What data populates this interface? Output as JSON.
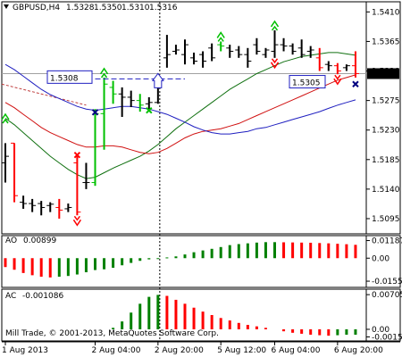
{
  "colors": {
    "background": "#ffffff",
    "frame": "#000000",
    "bull_bar": "#00c000",
    "bear_bar": "#ff0000",
    "neutral_bar": "#000000",
    "ma_blue": "#1f1fc0",
    "ma_red": "#d01010",
    "ma_green": "#107010",
    "ao_up": "#008000",
    "ao_down": "#ff0000",
    "arrow_up": "#00c000",
    "arrow_down": "#ff0000",
    "signal_cross": "#000080",
    "price_tag_bg": "#000000",
    "price_tag_fg": "#ffffff",
    "hline": "#1f1fc0",
    "dotted_line": "#000000",
    "pink_line": "#c04040"
  },
  "chart_data": [
    {
      "type": "bar",
      "title": "GBPUSD,H4",
      "ohlc_readout": [
        "1.5328",
        "1.5350",
        "1.5310",
        "1.5316"
      ],
      "ylim": [
        1.508,
        1.542
      ],
      "y_ticks": [
        "1.5410",
        "1.5365",
        "1.5320",
        "1.5275",
        "1.5230",
        "1.5185",
        "1.5140",
        "1.5095"
      ],
      "y_tick_values": [
        1.541,
        1.5365,
        1.532,
        1.5275,
        1.523,
        1.5185,
        1.514,
        1.5095
      ],
      "current_price_label": "1.5316",
      "current_price": 1.5316,
      "annotations": [
        {
          "text": "1.5308",
          "value": 1.5308
        },
        {
          "text": "1.5305",
          "value": 1.5305
        }
      ],
      "bars": [
        {
          "i": 0,
          "o": 1.518,
          "h": 1.521,
          "l": 1.515,
          "c": 1.519,
          "col": "neutral"
        },
        {
          "i": 1,
          "o": 1.521,
          "h": 1.521,
          "l": 1.512,
          "c": 1.513,
          "col": "bear"
        },
        {
          "i": 2,
          "o": 1.512,
          "h": 1.513,
          "l": 1.511,
          "c": 1.5118,
          "col": "neutral"
        },
        {
          "i": 3,
          "o": 1.5118,
          "h": 1.5125,
          "l": 1.5105,
          "c": 1.5115,
          "col": "neutral"
        },
        {
          "i": 4,
          "o": 1.5118,
          "h": 1.5122,
          "l": 1.51,
          "c": 1.5112,
          "col": "neutral"
        },
        {
          "i": 5,
          "o": 1.5115,
          "h": 1.512,
          "l": 1.5105,
          "c": 1.5117,
          "col": "neutral"
        },
        {
          "i": 6,
          "o": 1.5112,
          "h": 1.5125,
          "l": 1.5095,
          "c": 1.5108,
          "col": "bear"
        },
        {
          "i": 7,
          "o": 1.511,
          "h": 1.5118,
          "l": 1.5105,
          "c": 1.5112,
          "col": "neutral"
        },
        {
          "i": 8,
          "o": 1.518,
          "h": 1.519,
          "l": 1.51,
          "c": 1.5105,
          "col": "bear"
        },
        {
          "i": 9,
          "o": 1.515,
          "h": 1.518,
          "l": 1.514,
          "c": 1.515,
          "col": "neutral"
        },
        {
          "i": 10,
          "o": 1.515,
          "h": 1.5262,
          "l": 1.5145,
          "c": 1.5255,
          "col": "bull"
        },
        {
          "i": 11,
          "o": 1.5255,
          "h": 1.531,
          "l": 1.52,
          "c": 1.53,
          "col": "bull"
        },
        {
          "i": 12,
          "o": 1.5295,
          "h": 1.5305,
          "l": 1.527,
          "c": 1.5285,
          "col": "bull"
        },
        {
          "i": 13,
          "o": 1.5285,
          "h": 1.5295,
          "l": 1.525,
          "c": 1.528,
          "col": "neutral"
        },
        {
          "i": 14,
          "o": 1.528,
          "h": 1.529,
          "l": 1.5265,
          "c": 1.5275,
          "col": "neutral"
        },
        {
          "i": 15,
          "o": 1.5275,
          "h": 1.5285,
          "l": 1.5258,
          "c": 1.5268,
          "col": "bull"
        },
        {
          "i": 16,
          "o": 1.527,
          "h": 1.528,
          "l": 1.5262,
          "c": 1.5272,
          "col": "neutral"
        },
        {
          "i": 17,
          "o": 1.5272,
          "h": 1.5302,
          "l": 1.527,
          "c": 1.5298,
          "col": "neutral"
        },
        {
          "i": 18,
          "o": 1.534,
          "h": 1.5375,
          "l": 1.5325,
          "c": 1.5345,
          "col": "neutral"
        },
        {
          "i": 19,
          "o": 1.535,
          "h": 1.536,
          "l": 1.5345,
          "c": 1.5352,
          "col": "neutral"
        },
        {
          "i": 20,
          "o": 1.5345,
          "h": 1.5368,
          "l": 1.533,
          "c": 1.536,
          "col": "neutral"
        },
        {
          "i": 21,
          "o": 1.534,
          "h": 1.5348,
          "l": 1.533,
          "c": 1.5335,
          "col": "neutral"
        },
        {
          "i": 22,
          "o": 1.5345,
          "h": 1.535,
          "l": 1.5325,
          "c": 1.5335,
          "col": "neutral"
        },
        {
          "i": 23,
          "o": 1.5355,
          "h": 1.5362,
          "l": 1.5335,
          "c": 1.534,
          "col": "neutral"
        },
        {
          "i": 24,
          "o": 1.536,
          "h": 1.5365,
          "l": 1.535,
          "c": 1.5358,
          "col": "bull"
        },
        {
          "i": 25,
          "o": 1.5355,
          "h": 1.536,
          "l": 1.534,
          "c": 1.535,
          "col": "neutral"
        },
        {
          "i": 26,
          "o": 1.5352,
          "h": 1.5358,
          "l": 1.534,
          "c": 1.5345,
          "col": "neutral"
        },
        {
          "i": 27,
          "o": 1.5345,
          "h": 1.5355,
          "l": 1.5325,
          "c": 1.5335,
          "col": "neutral"
        },
        {
          "i": 28,
          "o": 1.536,
          "h": 1.537,
          "l": 1.5345,
          "c": 1.535,
          "col": "neutral"
        },
        {
          "i": 29,
          "o": 1.5345,
          "h": 1.5355,
          "l": 1.534,
          "c": 1.5352,
          "col": "neutral"
        },
        {
          "i": 30,
          "o": 1.535,
          "h": 1.5382,
          "l": 1.534,
          "c": 1.536,
          "col": "neutral"
        },
        {
          "i": 31,
          "o": 1.536,
          "h": 1.537,
          "l": 1.535,
          "c": 1.5358,
          "col": "neutral"
        },
        {
          "i": 32,
          "o": 1.5358,
          "h": 1.5362,
          "l": 1.5345,
          "c": 1.535,
          "col": "neutral"
        },
        {
          "i": 33,
          "o": 1.5355,
          "h": 1.5368,
          "l": 1.534,
          "c": 1.5345,
          "col": "neutral"
        },
        {
          "i": 34,
          "o": 1.535,
          "h": 1.5358,
          "l": 1.534,
          "c": 1.5352,
          "col": "neutral"
        },
        {
          "i": 35,
          "o": 1.534,
          "h": 1.5355,
          "l": 1.532,
          "c": 1.5325,
          "col": "bear"
        },
        {
          "i": 36,
          "o": 1.533,
          "h": 1.5335,
          "l": 1.532,
          "c": 1.5328,
          "col": "neutral"
        },
        {
          "i": 37,
          "o": 1.5328,
          "h": 1.5332,
          "l": 1.5315,
          "c": 1.532,
          "col": "bear"
        },
        {
          "i": 38,
          "o": 1.5325,
          "h": 1.533,
          "l": 1.532,
          "c": 1.5328,
          "col": "neutral"
        },
        {
          "i": 39,
          "o": 1.5328,
          "h": 1.535,
          "l": 1.531,
          "c": 1.5316,
          "col": "bear"
        }
      ],
      "ma_blue": [
        1.533,
        1.5322,
        1.5312,
        1.5302,
        1.5292,
        1.5284,
        1.5278,
        1.5272,
        1.5266,
        1.5262,
        1.526,
        1.5262,
        1.5264,
        1.5266,
        1.5266,
        1.5264,
        1.5262,
        1.5258,
        1.5254,
        1.5248,
        1.5242,
        1.5235,
        1.523,
        1.5226,
        1.5224,
        1.5224,
        1.5226,
        1.5228,
        1.5232,
        1.5234,
        1.5238,
        1.5242,
        1.5246,
        1.525,
        1.5254,
        1.5258,
        1.5263,
        1.5268,
        1.5272,
        1.5276
      ],
      "ma_red": [
        1.5272,
        1.5264,
        1.5254,
        1.5244,
        1.5234,
        1.5226,
        1.522,
        1.5214,
        1.5208,
        1.5204,
        1.5204,
        1.5206,
        1.5206,
        1.5204,
        1.52,
        1.5196,
        1.5194,
        1.5196,
        1.5202,
        1.521,
        1.5218,
        1.5224,
        1.5228,
        1.523,
        1.5232,
        1.5236,
        1.524,
        1.5246,
        1.5252,
        1.5258,
        1.5264,
        1.527,
        1.5276,
        1.5282,
        1.5288,
        1.5294,
        1.53,
        1.5306,
        1.531,
        1.5314
      ],
      "ma_green": [
        1.5248,
        1.5238,
        1.5226,
        1.5214,
        1.5202,
        1.519,
        1.518,
        1.517,
        1.5162,
        1.5156,
        1.5158,
        1.5165,
        1.5172,
        1.5178,
        1.5184,
        1.519,
        1.5198,
        1.5208,
        1.522,
        1.5232,
        1.5242,
        1.5252,
        1.5262,
        1.5272,
        1.5282,
        1.5292,
        1.53,
        1.5308,
        1.5316,
        1.5322,
        1.5328,
        1.5334,
        1.5338,
        1.5342,
        1.5344,
        1.5346,
        1.5348,
        1.5348,
        1.5346,
        1.5344
      ],
      "up_arrow_bars": [
        11,
        24,
        30
      ],
      "down_arrow_bars": [
        8,
        30,
        37
      ],
      "cross_marks": [
        {
          "bar": 8,
          "value": 1.5192,
          "col": "bear"
        },
        {
          "bar": 10,
          "value": 1.5257,
          "col": "signal"
        },
        {
          "bar": 16,
          "value": 1.526,
          "col": "bull"
        },
        {
          "bar": 39,
          "value": 1.53,
          "col": "signal"
        }
      ]
    },
    {
      "type": "bar",
      "title": "AO",
      "value_label": "0.00899",
      "y_ticks": [
        "0.01187",
        "0.00",
        "-0.01552"
      ],
      "y_tick_values": [
        0.01187,
        0.0,
        -0.01552
      ],
      "ylim": [
        -0.0185,
        0.014
      ],
      "values": [
        -0.006,
        -0.0078,
        -0.01,
        -0.0115,
        -0.0125,
        -0.013,
        -0.0125,
        -0.012,
        -0.011,
        -0.0095,
        -0.008,
        -0.0075,
        -0.0065,
        -0.0048,
        -0.0032,
        -0.0018,
        -0.0008,
        -0.0003,
        0.0005,
        0.0012,
        0.0025,
        0.004,
        0.0052,
        0.0063,
        0.0075,
        0.0088,
        0.0095,
        0.01,
        0.0105,
        0.0108,
        0.0108,
        0.0107,
        0.0106,
        0.0105,
        0.0104,
        0.0102,
        0.01,
        0.0097,
        0.0094,
        0.009
      ]
    },
    {
      "type": "bar",
      "title": "AC",
      "value_label": "-0.001086",
      "y_ticks": [
        "0.00705",
        "0.00",
        "-0.00155"
      ],
      "y_tick_values": [
        0.00705,
        0.0,
        -0.00155
      ],
      "ylim": [
        -0.002,
        0.0078
      ],
      "values": [
        0.0,
        0.0,
        0.0,
        0.0,
        0.0,
        0.0,
        0.0,
        0.0,
        0.0,
        0.0,
        0.0,
        0.0,
        0.0003,
        0.0016,
        0.0034,
        0.0052,
        0.0066,
        0.007,
        0.0068,
        0.006,
        0.0052,
        0.0044,
        0.0036,
        0.0029,
        0.0023,
        0.0018,
        0.0013,
        0.0009,
        0.0006,
        0.0003,
        0.0,
        -0.0004,
        -0.0007,
        -0.0009,
        -0.0011,
        -0.0012,
        -0.0013,
        -0.0012,
        -0.0011,
        -0.0011
      ]
    }
  ],
  "x_axis": {
    "labels": [
      "1 Aug 2013",
      "2 Aug 04:00",
      "2 Aug 20:00",
      "5 Aug 12:00",
      "6 Aug 04:00",
      "6 Aug 20:00"
    ],
    "label_bars": [
      0,
      10,
      17,
      24,
      30,
      37
    ]
  },
  "copyright": "Mill Trade, © 2001-2013, MetaQuotes Software Corp."
}
